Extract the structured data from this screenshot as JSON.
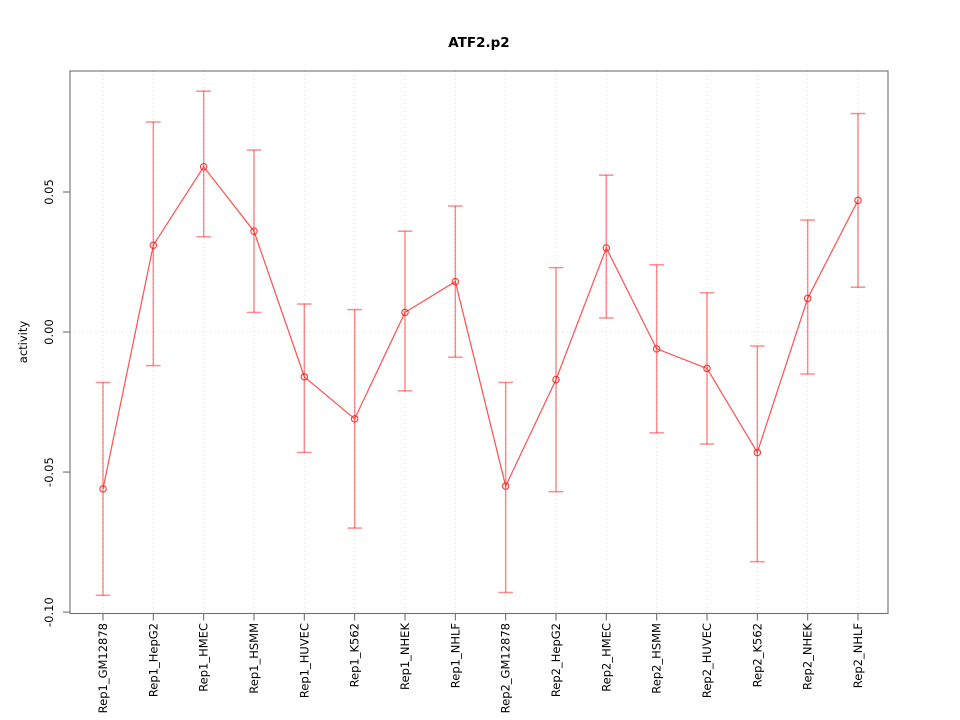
{
  "chart_data": {
    "type": "line",
    "title": "ATF2.p2",
    "xlabel": "",
    "ylabel": "activity",
    "legend": "none",
    "grid": "vertical dotted gridline per category; dotted horizontal line at y=0",
    "categories": [
      "Rep1_GM12878",
      "Rep1_HepG2",
      "Rep1_HMEC",
      "Rep1_HSMM",
      "Rep1_HUVEC",
      "Rep1_K562",
      "Rep1_NHEK",
      "Rep1_NHLF",
      "Rep2_GM12878",
      "Rep2_HepG2",
      "Rep2_HMEC",
      "Rep2_HSMM",
      "Rep2_HUVEC",
      "Rep2_K562",
      "Rep2_NHEK",
      "Rep2_NHLF"
    ],
    "series": [
      {
        "name": "activity",
        "marker": "open-circle",
        "values": [
          -0.056,
          0.031,
          0.059,
          0.036,
          -0.016,
          -0.031,
          0.007,
          0.018,
          -0.055,
          -0.017,
          0.03,
          -0.006,
          -0.013,
          -0.043,
          0.012,
          0.047
        ],
        "err_high": [
          -0.018,
          0.075,
          0.086,
          0.065,
          0.01,
          0.008,
          0.036,
          0.045,
          -0.018,
          0.023,
          0.056,
          0.024,
          0.014,
          -0.005,
          0.04,
          0.078
        ],
        "err_low": [
          -0.094,
          -0.012,
          0.034,
          0.007,
          -0.043,
          -0.07,
          -0.021,
          -0.009,
          -0.093,
          -0.057,
          0.005,
          -0.036,
          -0.04,
          -0.082,
          -0.015,
          0.016
        ]
      }
    ],
    "yticks": [
      0.05,
      0.0,
      -0.05,
      -0.1
    ],
    "ytick_labels": [
      "0.05",
      "0.00",
      "-0.05",
      "-0.10"
    ],
    "ylim": [
      -0.1005,
      0.0932
    ],
    "colors": {
      "series_line": "#ff3030",
      "error_bar": "#ff0000",
      "marker": "#ff2020",
      "gridline": "#dcdcdc",
      "axis": "#6f6f6f",
      "text": "#000000",
      "background": "#ffffff"
    }
  }
}
